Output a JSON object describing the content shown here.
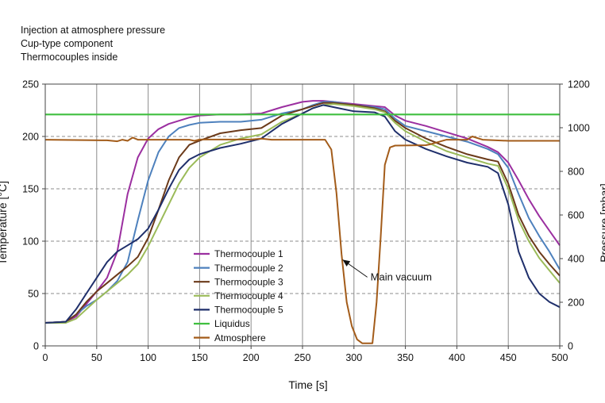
{
  "header": {
    "line1": "Injection at atmosphere pressure",
    "line2": "Cup-type component",
    "line3": "Thermocouples inside"
  },
  "chart_data": {
    "type": "line",
    "xlabel": "Time [s]",
    "ylabel": "Temperature [°C]",
    "y2label": "Pressure [mbar]",
    "xlim": [
      0,
      500
    ],
    "ylim": [
      0,
      250
    ],
    "y2lim": [
      0,
      1200
    ],
    "xticks": [
      "0",
      "50",
      "100",
      "150",
      "200",
      "250",
      "300",
      "350",
      "400",
      "450",
      "500"
    ],
    "yticks": [
      "0",
      "50",
      "100",
      "150",
      "200",
      "250"
    ],
    "y2ticks": [
      "0",
      "200",
      "400",
      "600",
      "800",
      "1000",
      "1200"
    ],
    "grid": "vertical solid, horizontal dashed",
    "legend_position": "lower-left inside",
    "annotation": "Main vacuum",
    "series": [
      {
        "name": "Thermocouple 1",
        "color": "#9b2fa0",
        "axis": "left",
        "points": [
          [
            0,
            22
          ],
          [
            20,
            23
          ],
          [
            30,
            28
          ],
          [
            40,
            40
          ],
          [
            50,
            52
          ],
          [
            60,
            65
          ],
          [
            70,
            90
          ],
          [
            80,
            145
          ],
          [
            90,
            180
          ],
          [
            100,
            198
          ],
          [
            110,
            207
          ],
          [
            120,
            212
          ],
          [
            130,
            215
          ],
          [
            140,
            218
          ],
          [
            150,
            220
          ],
          [
            170,
            221
          ],
          [
            190,
            221
          ],
          [
            210,
            222
          ],
          [
            230,
            228
          ],
          [
            250,
            233
          ],
          [
            260,
            234
          ],
          [
            270,
            234
          ],
          [
            280,
            233
          ],
          [
            300,
            231
          ],
          [
            320,
            229
          ],
          [
            330,
            228
          ],
          [
            340,
            220
          ],
          [
            350,
            215
          ],
          [
            370,
            210
          ],
          [
            390,
            204
          ],
          [
            410,
            198
          ],
          [
            430,
            190
          ],
          [
            440,
            185
          ],
          [
            450,
            175
          ],
          [
            460,
            158
          ],
          [
            470,
            140
          ],
          [
            480,
            124
          ],
          [
            490,
            110
          ],
          [
            500,
            96
          ]
        ]
      },
      {
        "name": "Thermocouple 2",
        "color": "#4e81bd",
        "axis": "left",
        "points": [
          [
            0,
            22
          ],
          [
            20,
            23
          ],
          [
            30,
            30
          ],
          [
            40,
            38
          ],
          [
            50,
            44
          ],
          [
            60,
            52
          ],
          [
            70,
            62
          ],
          [
            80,
            80
          ],
          [
            90,
            120
          ],
          [
            100,
            158
          ],
          [
            110,
            185
          ],
          [
            120,
            200
          ],
          [
            130,
            208
          ],
          [
            140,
            211
          ],
          [
            150,
            213
          ],
          [
            170,
            214
          ],
          [
            190,
            214
          ],
          [
            210,
            216
          ],
          [
            230,
            222
          ],
          [
            250,
            226
          ],
          [
            260,
            230
          ],
          [
            270,
            233
          ],
          [
            280,
            233
          ],
          [
            300,
            230
          ],
          [
            320,
            228
          ],
          [
            330,
            226
          ],
          [
            340,
            217
          ],
          [
            350,
            210
          ],
          [
            370,
            205
          ],
          [
            390,
            200
          ],
          [
            410,
            195
          ],
          [
            430,
            188
          ],
          [
            440,
            183
          ],
          [
            450,
            170
          ],
          [
            460,
            145
          ],
          [
            470,
            122
          ],
          [
            480,
            105
          ],
          [
            490,
            90
          ],
          [
            500,
            73
          ]
        ]
      },
      {
        "name": "Thermocouple 3",
        "color": "#6b3a1a",
        "axis": "left",
        "points": [
          [
            0,
            22
          ],
          [
            20,
            23
          ],
          [
            30,
            30
          ],
          [
            40,
            42
          ],
          [
            50,
            52
          ],
          [
            60,
            60
          ],
          [
            70,
            68
          ],
          [
            80,
            76
          ],
          [
            90,
            85
          ],
          [
            100,
            103
          ],
          [
            110,
            130
          ],
          [
            120,
            158
          ],
          [
            130,
            180
          ],
          [
            140,
            192
          ],
          [
            150,
            196
          ],
          [
            170,
            203
          ],
          [
            190,
            206
          ],
          [
            210,
            208
          ],
          [
            230,
            220
          ],
          [
            250,
            226
          ],
          [
            260,
            229
          ],
          [
            270,
            232
          ],
          [
            280,
            232
          ],
          [
            300,
            230
          ],
          [
            320,
            227
          ],
          [
            330,
            224
          ],
          [
            340,
            215
          ],
          [
            350,
            208
          ],
          [
            370,
            198
          ],
          [
            390,
            190
          ],
          [
            410,
            183
          ],
          [
            430,
            178
          ],
          [
            440,
            176
          ],
          [
            450,
            155
          ],
          [
            460,
            125
          ],
          [
            470,
            105
          ],
          [
            480,
            90
          ],
          [
            490,
            78
          ],
          [
            500,
            67
          ]
        ]
      },
      {
        "name": "Thermocouple 4",
        "color": "#9bbb59",
        "axis": "left",
        "points": [
          [
            0,
            22
          ],
          [
            20,
            22
          ],
          [
            30,
            26
          ],
          [
            40,
            35
          ],
          [
            50,
            44
          ],
          [
            60,
            52
          ],
          [
            70,
            60
          ],
          [
            80,
            68
          ],
          [
            90,
            78
          ],
          [
            100,
            95
          ],
          [
            110,
            115
          ],
          [
            120,
            135
          ],
          [
            130,
            155
          ],
          [
            140,
            170
          ],
          [
            150,
            180
          ],
          [
            170,
            192
          ],
          [
            190,
            198
          ],
          [
            210,
            202
          ],
          [
            230,
            214
          ],
          [
            250,
            222
          ],
          [
            260,
            227
          ],
          [
            270,
            230
          ],
          [
            280,
            231
          ],
          [
            300,
            229
          ],
          [
            320,
            226
          ],
          [
            330,
            223
          ],
          [
            340,
            213
          ],
          [
            350,
            205
          ],
          [
            370,
            195
          ],
          [
            390,
            186
          ],
          [
            410,
            180
          ],
          [
            430,
            174
          ],
          [
            440,
            172
          ],
          [
            450,
            150
          ],
          [
            460,
            120
          ],
          [
            470,
            100
          ],
          [
            480,
            84
          ],
          [
            490,
            72
          ],
          [
            500,
            60
          ]
        ]
      },
      {
        "name": "Thermocouple 5",
        "color": "#1f2f6b",
        "axis": "left",
        "points": [
          [
            0,
            22
          ],
          [
            20,
            23
          ],
          [
            30,
            35
          ],
          [
            40,
            50
          ],
          [
            50,
            65
          ],
          [
            60,
            80
          ],
          [
            70,
            90
          ],
          [
            80,
            96
          ],
          [
            90,
            102
          ],
          [
            100,
            112
          ],
          [
            110,
            130
          ],
          [
            120,
            150
          ],
          [
            130,
            168
          ],
          [
            140,
            178
          ],
          [
            150,
            183
          ],
          [
            170,
            189
          ],
          [
            190,
            193
          ],
          [
            210,
            198
          ],
          [
            230,
            212
          ],
          [
            250,
            222
          ],
          [
            260,
            227
          ],
          [
            270,
            230
          ],
          [
            275,
            229
          ],
          [
            280,
            228
          ],
          [
            300,
            224
          ],
          [
            320,
            223
          ],
          [
            330,
            219
          ],
          [
            340,
            205
          ],
          [
            350,
            197
          ],
          [
            370,
            188
          ],
          [
            390,
            181
          ],
          [
            410,
            175
          ],
          [
            430,
            171
          ],
          [
            440,
            165
          ],
          [
            450,
            135
          ],
          [
            460,
            90
          ],
          [
            470,
            65
          ],
          [
            480,
            50
          ],
          [
            490,
            42
          ],
          [
            500,
            37
          ]
        ]
      },
      {
        "name": "Liquidus",
        "color": "#3fbf3f",
        "axis": "left",
        "points": [
          [
            0,
            221
          ],
          [
            500,
            221
          ]
        ]
      },
      {
        "name": "Atmosphere",
        "color": "#a35c1a",
        "axis": "right",
        "points": [
          [
            0,
            945
          ],
          [
            60,
            942
          ],
          [
            70,
            938
          ],
          [
            75,
            945
          ],
          [
            80,
            940
          ],
          [
            85,
            955
          ],
          [
            90,
            945
          ],
          [
            140,
            945
          ],
          [
            145,
            940
          ],
          [
            150,
            946
          ],
          [
            200,
            946
          ],
          [
            210,
            950
          ],
          [
            220,
            945
          ],
          [
            260,
            945
          ],
          [
            272,
            945
          ],
          [
            278,
            900
          ],
          [
            283,
            700
          ],
          [
            288,
            420
          ],
          [
            293,
            200
          ],
          [
            298,
            90
          ],
          [
            303,
            30
          ],
          [
            308,
            12
          ],
          [
            318,
            12
          ],
          [
            322,
            200
          ],
          [
            326,
            500
          ],
          [
            330,
            830
          ],
          [
            335,
            910
          ],
          [
            340,
            918
          ],
          [
            370,
            920
          ],
          [
            375,
            925
          ],
          [
            390,
            945
          ],
          [
            410,
            945
          ],
          [
            415,
            960
          ],
          [
            425,
            945
          ],
          [
            450,
            940
          ],
          [
            480,
            940
          ],
          [
            500,
            940
          ]
        ]
      }
    ]
  }
}
